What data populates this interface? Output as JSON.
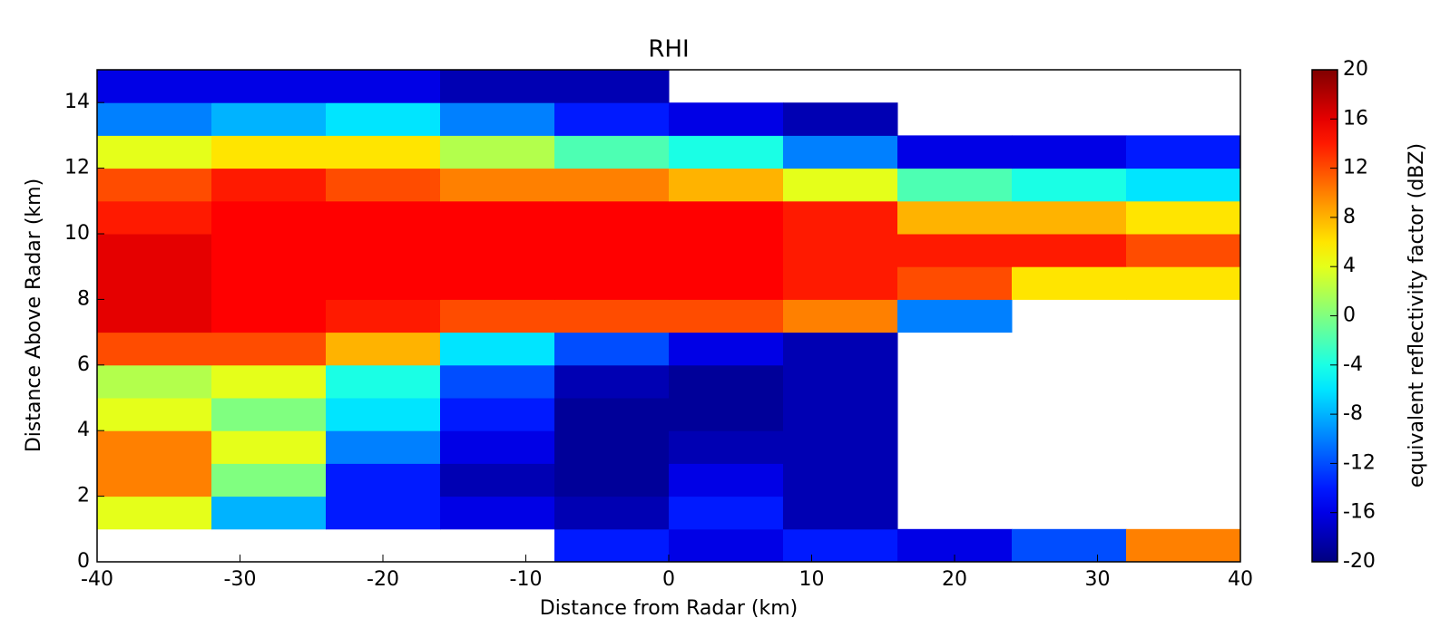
{
  "chart_data": {
    "type": "heatmap",
    "title": "RHI",
    "x_label": "Distance from Radar (km)",
    "y_label": "Distance Above Radar  (km)",
    "x_bins": [
      -40,
      -32,
      -24,
      -16,
      -8,
      0,
      8,
      16,
      24,
      32,
      40
    ],
    "y_bins": [
      0,
      1,
      2,
      3,
      4,
      5,
      6,
      7,
      8,
      9,
      10,
      11,
      12,
      13,
      14,
      15
    ],
    "z": [
      [
        null,
        null,
        null,
        null,
        -14,
        -16,
        -14,
        -16,
        -12,
        10
      ],
      [
        4,
        -8,
        -14,
        -16,
        -18,
        -14,
        -18,
        null,
        null,
        null
      ],
      [
        10,
        0,
        -14,
        -18,
        -19,
        -16,
        -18,
        null,
        null,
        null
      ],
      [
        10,
        4,
        -10,
        -16,
        -19,
        -18,
        -18,
        null,
        null,
        null
      ],
      [
        4,
        0,
        -6,
        -14,
        -19,
        -19,
        -18,
        null,
        null,
        null
      ],
      [
        2,
        4,
        -4,
        -12,
        -18,
        -19,
        -18,
        null,
        null,
        null
      ],
      [
        12,
        12,
        8,
        -6,
        -12,
        -16,
        -18,
        null,
        null,
        null
      ],
      [
        16,
        15,
        14,
        12,
        12,
        12,
        10,
        -10,
        null,
        null
      ],
      [
        16,
        15,
        15,
        15,
        15,
        15,
        14,
        12,
        6,
        6
      ],
      [
        16,
        15,
        15,
        15,
        15,
        15,
        14,
        14,
        14,
        12
      ],
      [
        14,
        15,
        15,
        15,
        15,
        15,
        14,
        8,
        8,
        6
      ],
      [
        12,
        14,
        12,
        10,
        10,
        8,
        4,
        -2,
        -4,
        -6
      ],
      [
        4,
        6,
        6,
        2,
        -2,
        -4,
        -10,
        -16,
        -16,
        -14
      ],
      [
        -10,
        -8,
        -6,
        -10,
        -14,
        -16,
        -18,
        null,
        null,
        null
      ],
      [
        -16,
        -16,
        -16,
        -18,
        -18,
        null,
        null,
        null,
        null,
        null
      ]
    ],
    "colormap": "jet",
    "colorbar_label": "equivalent reflectivity factor (dBZ)",
    "clim": [
      -20,
      20
    ],
    "cticks": [
      -20,
      -16,
      -12,
      -8,
      -4,
      0,
      4,
      8,
      12,
      16,
      20
    ],
    "xlim": [
      -40,
      40
    ],
    "xticks": [
      -40,
      -30,
      -20,
      -10,
      0,
      10,
      20,
      30,
      40
    ],
    "ylim": [
      0,
      15
    ],
    "yticks": [
      0,
      2,
      4,
      6,
      8,
      10,
      12,
      14
    ]
  }
}
